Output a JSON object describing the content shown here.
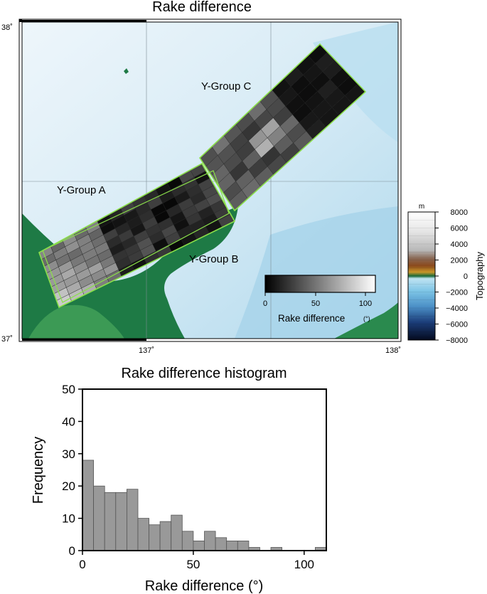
{
  "map": {
    "title": "Rake difference",
    "lat_labels": [
      "38˚",
      "37˚"
    ],
    "lon_labels": [
      "137˚",
      "138˚"
    ],
    "extent": {
      "lon": [
        136.5,
        138.0
      ],
      "lat": [
        37.0,
        38.0
      ]
    },
    "group_labels": [
      "Y-Group A",
      "Y-Group B",
      "Y-Group C"
    ],
    "group_outline_color": "#8be04a",
    "rake_colorbar": {
      "title": "Rake difference",
      "unit": "(°)",
      "ticks": [
        "0",
        "50",
        "100"
      ],
      "range": [
        0,
        110
      ],
      "palette": "gray (black to white)"
    },
    "topo_colorbar": {
      "unit": "m",
      "title": "Topography",
      "ticks": [
        "8000",
        "6000",
        "4000",
        "2000",
        "0",
        "−2000",
        "−4000",
        "−6000",
        "−8000"
      ],
      "range": [
        -8000,
        8000
      ]
    }
  },
  "histogram": {
    "title": "Rake difference histogram",
    "xlabel": "Rake difference (°)",
    "ylabel": "Frequency",
    "x_ticks": [
      "0",
      "50",
      "100"
    ],
    "y_ticks": [
      "0",
      "10",
      "20",
      "30",
      "40",
      "50"
    ],
    "bar_color": "#999999"
  },
  "chart_data": [
    {
      "type": "heatmap",
      "title": "Rake difference",
      "xlim": [
        136.5,
        138.0
      ],
      "ylim": [
        37.0,
        38.0
      ],
      "colorbar_range": [
        0,
        110
      ]
    },
    {
      "type": "bar",
      "title": "Rake difference histogram",
      "xlabel": "Rake difference (°)",
      "ylabel": "Frequency",
      "xlim": [
        0,
        110
      ],
      "ylim": [
        0,
        50
      ],
      "bin_width": 5,
      "bins_start": [
        0,
        5,
        10,
        15,
        20,
        25,
        30,
        35,
        40,
        45,
        50,
        55,
        60,
        65,
        70,
        75,
        80,
        85,
        90,
        95,
        100,
        105
      ],
      "values": [
        28,
        20,
        18,
        18,
        19,
        10,
        8,
        9,
        11,
        6,
        3,
        6,
        4,
        3,
        3,
        1,
        0,
        1,
        0,
        0,
        0,
        1
      ]
    }
  ]
}
